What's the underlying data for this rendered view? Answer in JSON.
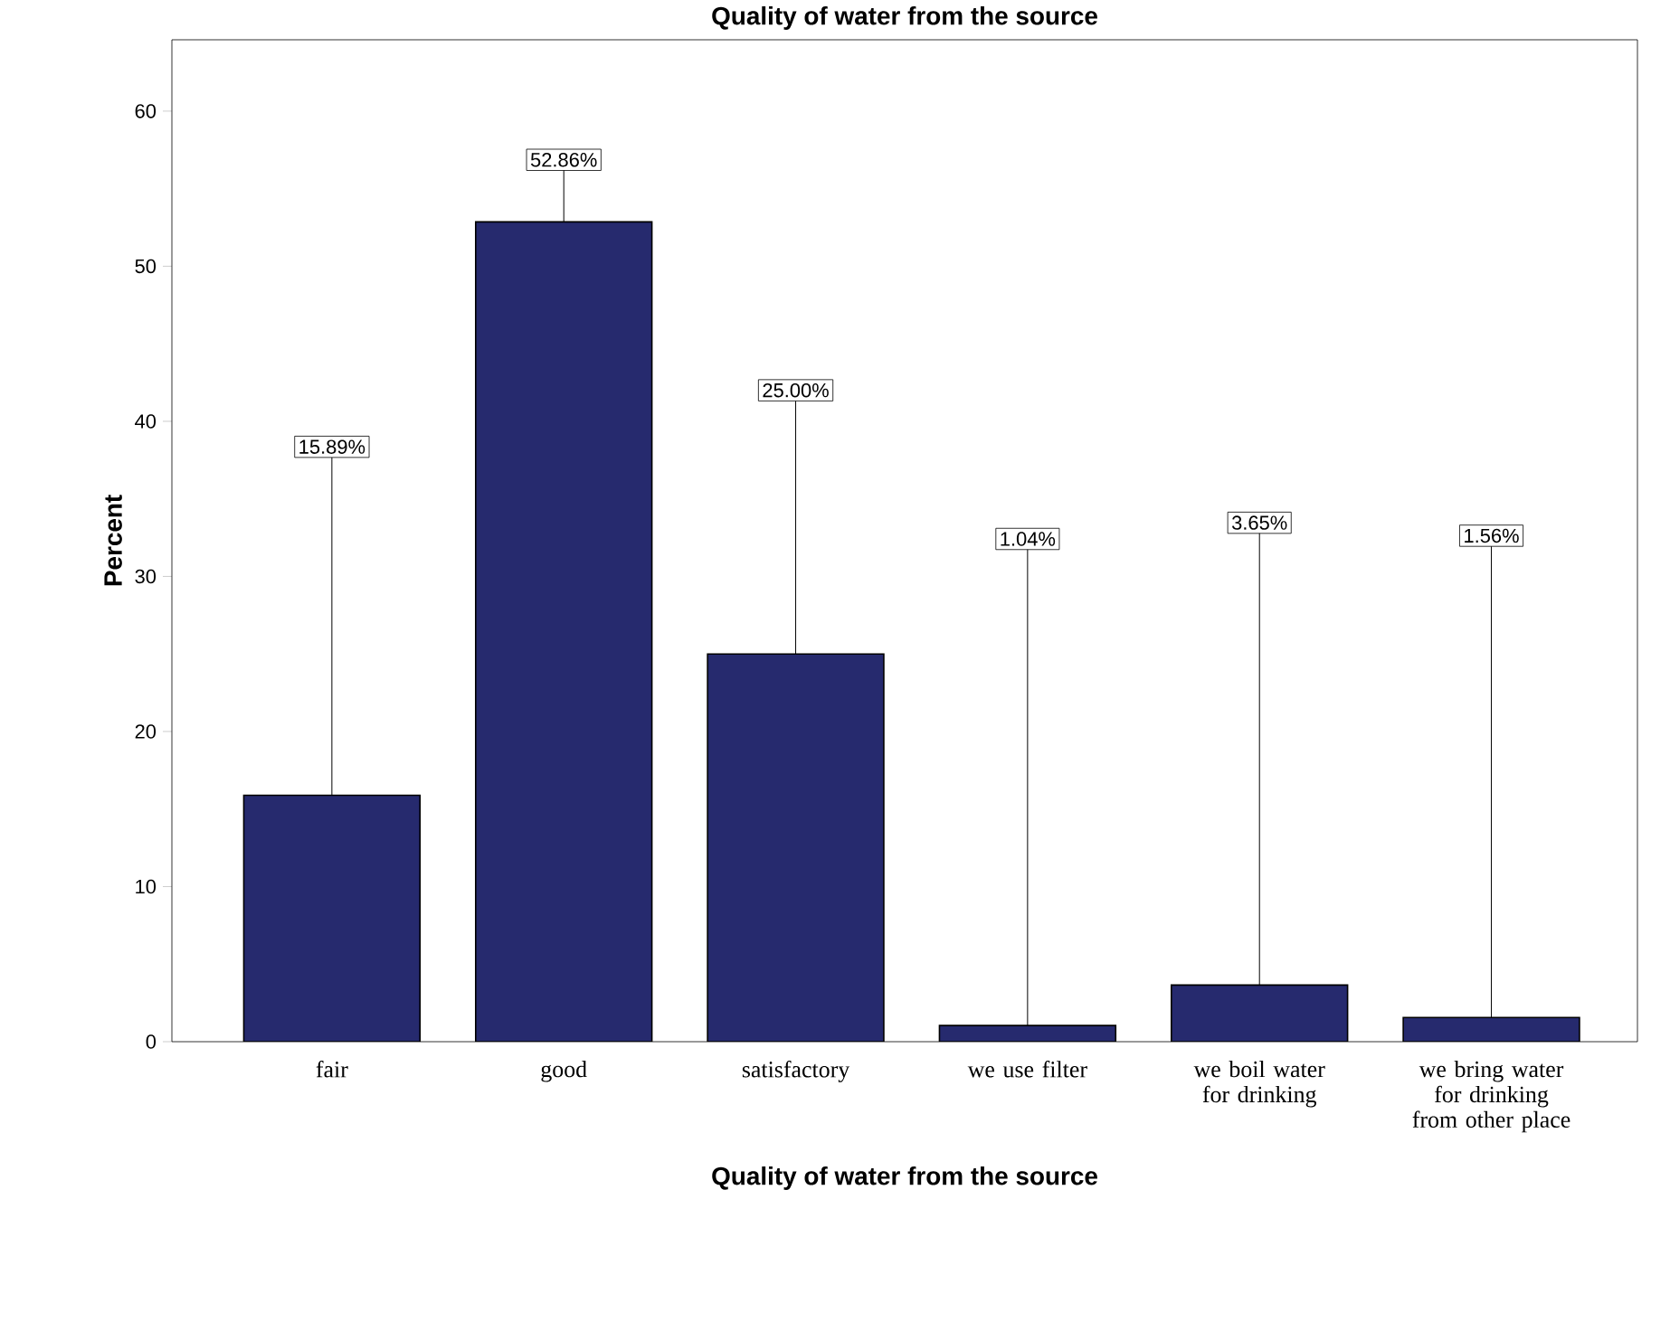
{
  "chart_data": {
    "type": "bar",
    "title": "Quality of water from the source",
    "xlabel": "Quality of water from the source",
    "ylabel": "Percent",
    "categories": [
      "fair",
      "good",
      "satisfactory",
      "we use filter",
      "we boil water for drinking",
      "we bring water for drinking from other place"
    ],
    "values": [
      15.89,
      52.86,
      25.0,
      1.04,
      3.65,
      1.56
    ],
    "value_labels": [
      "15.89%",
      "52.86%",
      "25.00%",
      "1.04%",
      "3.65%",
      "1.56%"
    ],
    "color": "#262a6e",
    "ylim": [
      0,
      64.6
    ],
    "yticks": [
      0,
      10,
      20,
      30,
      40,
      50,
      60
    ]
  }
}
